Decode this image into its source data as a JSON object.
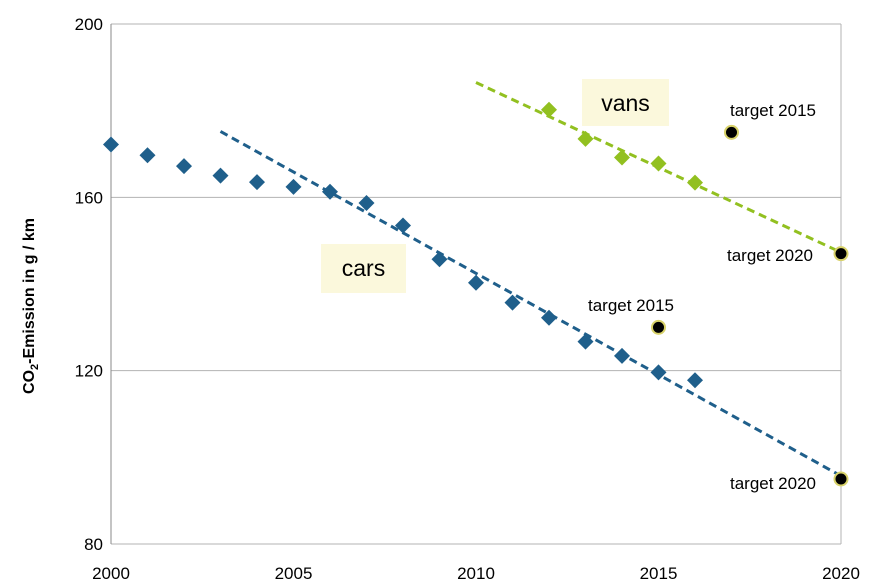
{
  "chart_data": {
    "type": "scatter",
    "title": "",
    "xlabel": "",
    "ylabel": "-Emission in g / km",
    "ylabel_prefix": "CO",
    "ylabel_subscript": "2",
    "xlim": [
      2000,
      2020
    ],
    "ylim": [
      80,
      200
    ],
    "x_ticks": [
      "2000",
      "2005",
      "2010",
      "2015",
      "2020"
    ],
    "y_ticks": [
      "80",
      "120",
      "160",
      "200"
    ],
    "grid": "horizontal",
    "series": [
      {
        "name": "cars",
        "color": "#1f5f8b",
        "marker": "diamond",
        "x": [
          2000,
          2001,
          2002,
          2003,
          2004,
          2005,
          2006,
          2007,
          2008,
          2009,
          2010,
          2011,
          2012,
          2013,
          2014,
          2015,
          2016
        ],
        "y": [
          172.2,
          169.7,
          167.2,
          165.0,
          163.5,
          162.4,
          161.3,
          158.7,
          153.5,
          145.7,
          140.3,
          135.7,
          132.2,
          126.7,
          123.4,
          119.6,
          117.8
        ],
        "trend": {
          "x": [
            2003,
            2020
          ],
          "y": [
            175.2,
            95.7
          ],
          "color": "#1f5f8b"
        },
        "target_2015": {
          "x": 2015,
          "y": 130,
          "label": "target 2015"
        },
        "target_2020": {
          "x": 2020,
          "y": 95,
          "label": "target 2020"
        }
      },
      {
        "name": "vans",
        "color": "#92c020",
        "marker": "diamond",
        "x": [
          2012,
          2013,
          2014,
          2015,
          2016
        ],
        "y": [
          180.2,
          173.5,
          169.2,
          167.8,
          163.4
        ],
        "trend": {
          "x": [
            2010,
            2020
          ],
          "y": [
            186.5,
            147.3
          ],
          "color": "#92c020"
        },
        "target_2015": {
          "x": 2017,
          "y": 175,
          "label": "target 2015"
        },
        "target_2020": {
          "x": 2020,
          "y": 147,
          "label": "target 2020"
        }
      }
    ]
  }
}
